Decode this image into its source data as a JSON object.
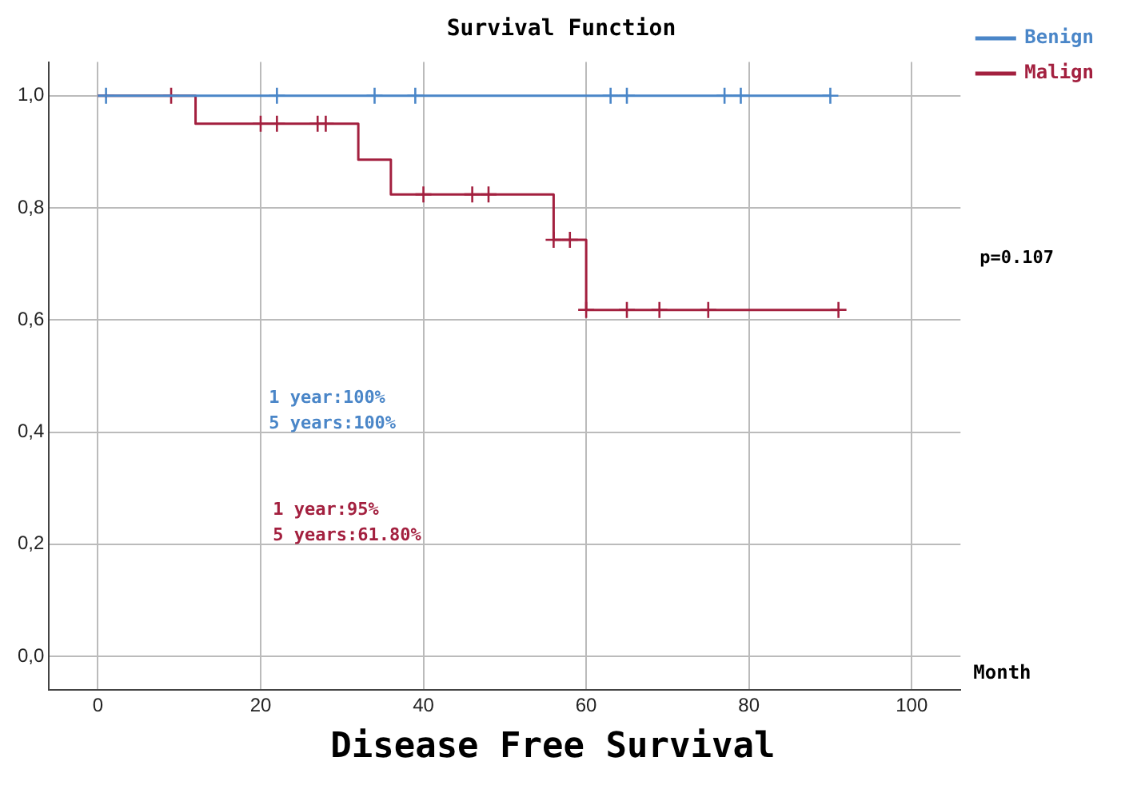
{
  "chart_data": {
    "type": "step",
    "title": "Survival Function",
    "xlabel": "Month",
    "annotations": [
      "p=0.107",
      "1 year:100%\n5 years:100%",
      "1 year:95%\n5 years:61.80%",
      "Disease Free Survival"
    ],
    "series": [
      {
        "name": "Benign",
        "color": "#4a86c8",
        "x": [
          0,
          90
        ],
        "values": [
          1,
          1
        ]
      },
      {
        "name": "Malign",
        "color": "#a3203f",
        "x": [
          0,
          12,
          32,
          36,
          56,
          60,
          91
        ],
        "values": [
          1,
          0.95,
          0.886,
          0.824,
          0.743,
          0.618,
          0.618
        ]
      },
      {
        "type": "scatter",
        "color": "#4a86c8",
        "marker": "cross",
        "x": [
          1,
          22,
          34,
          39,
          63,
          65,
          77,
          79,
          90
        ],
        "values": [
          1,
          1,
          1,
          1,
          1,
          1,
          1,
          1,
          1
        ]
      },
      {
        "type": "scatter",
        "color": "#a3203f",
        "marker": "cross",
        "x": [
          9,
          20,
          22,
          27,
          28,
          40,
          46,
          48,
          56,
          58,
          60,
          65,
          69,
          75,
          91
        ],
        "values": [
          1,
          0.95,
          0.95,
          0.95,
          0.95,
          0.824,
          0.824,
          0.824,
          0.743,
          0.743,
          0.618,
          0.618,
          0.618,
          0.618,
          0.618
        ]
      }
    ],
    "xlim": [
      -6,
      106
    ],
    "xticks": [
      0,
      20,
      40,
      60,
      80,
      100
    ],
    "ylim": [
      -0.06,
      1.06
    ],
    "yticks": [
      {
        "value": 0,
        "label": "0,0"
      },
      {
        "value": 0.2,
        "label": "0,2"
      },
      {
        "value": 0.4,
        "label": "0,4"
      },
      {
        "value": 0.6,
        "label": "0,6"
      },
      {
        "value": 0.8,
        "label": "0,8"
      },
      {
        "value": 1,
        "label": "1,0"
      }
    ],
    "grid": true,
    "legend": "top right"
  }
}
